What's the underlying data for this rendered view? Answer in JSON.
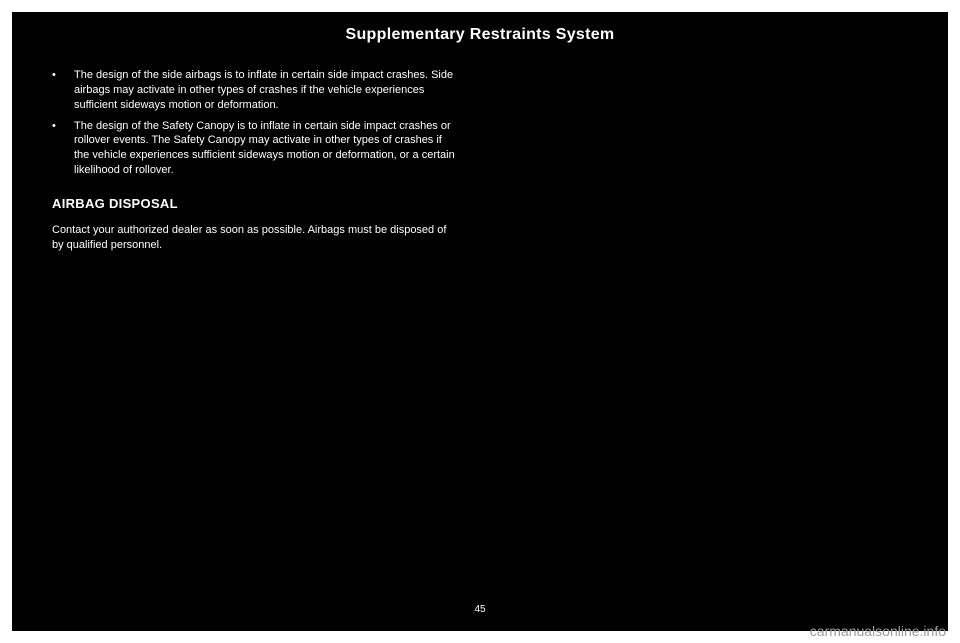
{
  "header": {
    "title": "Supplementary Restraints System"
  },
  "content": {
    "bullets": [
      "The design of the side airbags is to inflate in certain side impact crashes. Side airbags may activate in other types of crashes if the vehicle experiences sufficient sideways motion or deformation.",
      "The design of the Safety Canopy is to inflate in certain side impact crashes or rollover events. The Safety Canopy may activate in other types of crashes if the vehicle experiences sufficient sideways motion or deformation, or a certain likelihood of rollover."
    ],
    "section_heading": "AIRBAG DISPOSAL",
    "body": "Contact your authorized dealer as soon as possible. Airbags must be disposed of by qualified personnel."
  },
  "footer": {
    "page_number": "45",
    "watermark": "carmanualsonline.info"
  },
  "styling": {
    "page_bg": "#000000",
    "outer_bg": "#ffffff",
    "text_color": "#ffffff",
    "watermark_color": "#9a9a9a",
    "header_fontsize": 16,
    "body_fontsize": 11,
    "heading_fontsize": 13
  }
}
